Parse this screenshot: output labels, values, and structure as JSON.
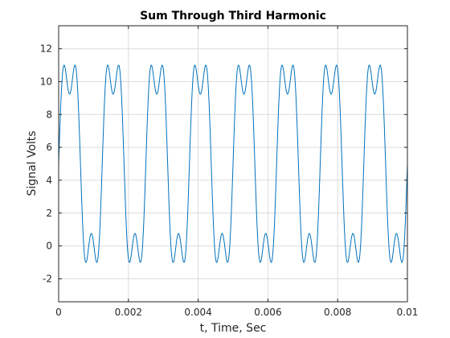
{
  "chart_data": {
    "type": "line",
    "title": "Sum Through Third Harmonic",
    "xlabel": "t, Time, Sec",
    "ylabel": "Signal Volts",
    "xlim": [
      0,
      0.01
    ],
    "ylim": [
      -3.4,
      13.4
    ],
    "xticks": [
      0,
      0.002,
      0.004,
      0.006,
      0.008,
      0.01
    ],
    "xtick_labels": [
      "0",
      "0.002",
      "0.004",
      "0.006",
      "0.008",
      "0.01"
    ],
    "yticks": [
      -2,
      0,
      2,
      4,
      6,
      8,
      10,
      12
    ],
    "ytick_labels": [
      "-2",
      "0",
      "2",
      "4",
      "6",
      "8",
      "10",
      "12"
    ],
    "grid": true,
    "legend": "none",
    "series": [
      {
        "color": "#0072bd",
        "offset": 5,
        "harmonics": [
          {
            "harmonic": 1,
            "amplitude": 6.3662
          },
          {
            "harmonic": 3,
            "amplitude": 2.1221
          }
        ],
        "fundamental_frequency_hz": 800
      }
    ]
  }
}
